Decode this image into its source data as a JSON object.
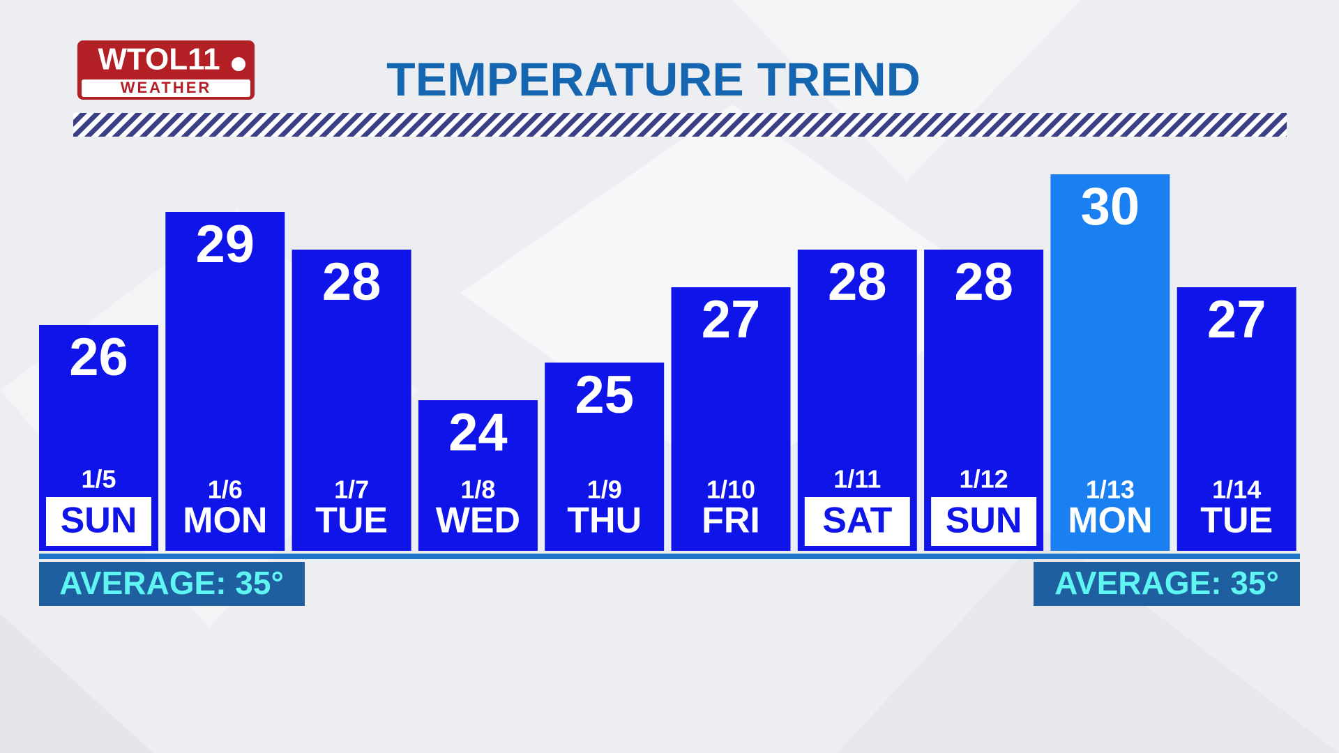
{
  "logo": {
    "name": "WTOL11",
    "subtitle": "WEATHER"
  },
  "chart_data": {
    "type": "bar",
    "title": "TEMPERATURE TREND",
    "categories": [
      "1/5",
      "1/6",
      "1/7",
      "1/8",
      "1/9",
      "1/10",
      "1/11",
      "1/12",
      "1/13",
      "1/14"
    ],
    "days": [
      "SUN",
      "MON",
      "TUE",
      "WED",
      "THU",
      "FRI",
      "SAT",
      "SUN",
      "MON",
      "TUE"
    ],
    "values": [
      26,
      29,
      28,
      24,
      25,
      27,
      28,
      28,
      30,
      27
    ],
    "colors": [
      "#0f14e8",
      "#0f14e8",
      "#0f14e8",
      "#0f14e8",
      "#0f14e8",
      "#0f14e8",
      "#0f14e8",
      "#0f14e8",
      "#1a80f2",
      "#0f14e8"
    ],
    "boxed": [
      true,
      false,
      false,
      false,
      false,
      false,
      true,
      true,
      false,
      false
    ],
    "ylim": [
      20,
      30
    ],
    "average_label": "AVERAGE: 35°"
  }
}
